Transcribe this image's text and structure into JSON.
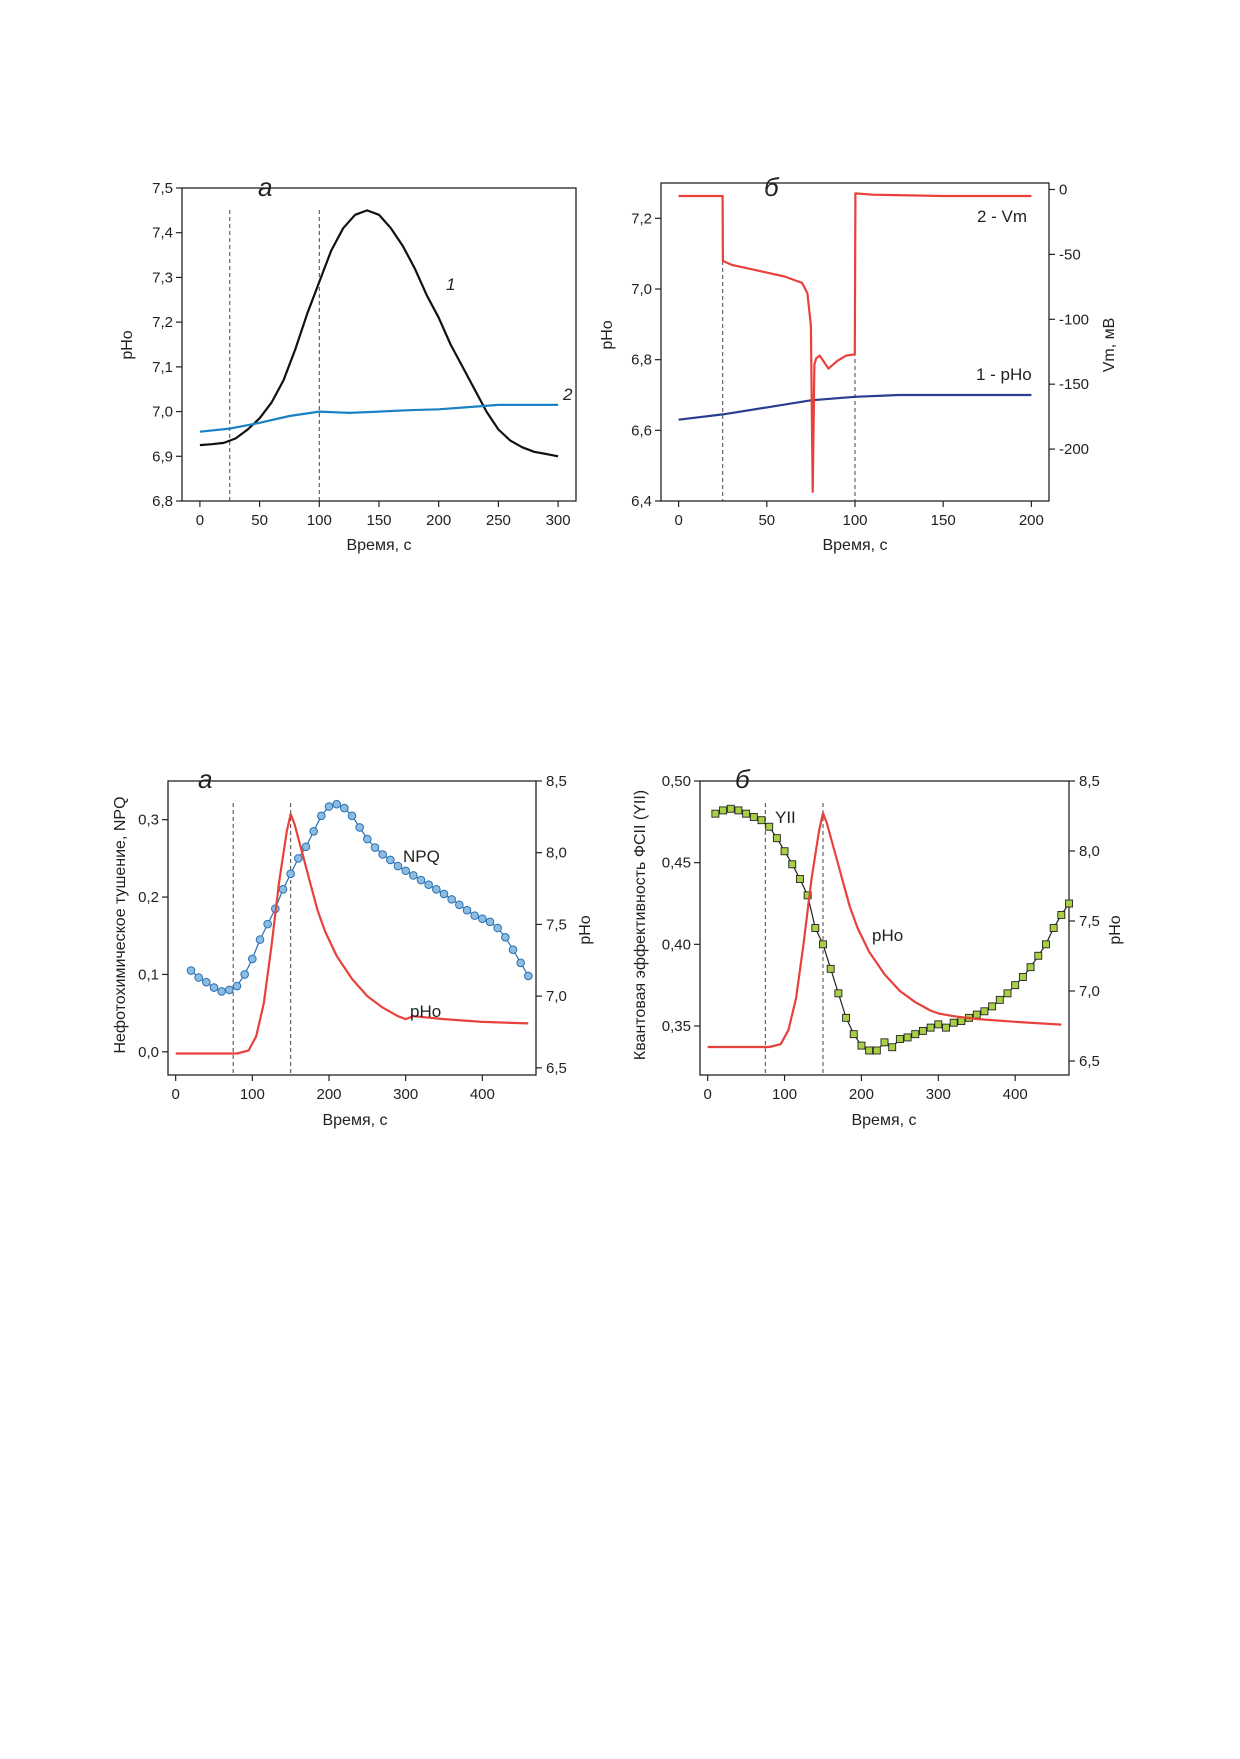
{
  "figure": {
    "top_row": [
      {
        "panel": "а",
        "xlabel": "Время, с",
        "ylabel": "pHo",
        "x_ticks": [
          "0",
          "50",
          "100",
          "150",
          "200",
          "250",
          "300"
        ],
        "y_ticks": [
          "6,8",
          "6,9",
          "7,0",
          "7,1",
          "7,2",
          "7,3",
          "7,4",
          "7,5"
        ],
        "series_labels": [
          "1",
          "2"
        ]
      },
      {
        "panel": "б",
        "xlabel": "Время, с",
        "ylabel_left": "pHo",
        "ylabel_right": "Vm, мВ",
        "x_ticks": [
          "0",
          "50",
          "100",
          "150",
          "200"
        ],
        "y_ticks_left": [
          "6,4",
          "6,6",
          "6,8",
          "7,0",
          "7,2"
        ],
        "y_ticks_right": [
          "0",
          "-50",
          "-100",
          "-150",
          "-200"
        ],
        "series_labels": [
          "2 - Vm",
          "1 - pHo"
        ]
      }
    ],
    "bottom_row": [
      {
        "panel": "а",
        "xlabel": "Время, с",
        "ylabel_left": "Нефотохимическое тушение, NPQ",
        "ylabel_right": "pHo",
        "x_ticks": [
          "0",
          "100",
          "200",
          "300",
          "400"
        ],
        "y_ticks_left": [
          "0,0",
          "0,1",
          "0,2",
          "0,3"
        ],
        "y_ticks_right": [
          "6,5",
          "7,0",
          "7,5",
          "8,0",
          "8,5"
        ],
        "series_labels": [
          "NPQ",
          "pHo"
        ]
      },
      {
        "panel": "б",
        "xlabel": "Время, с",
        "ylabel_left": "Квантовая эффективность ФСII (YII)",
        "ylabel_right": "pHo",
        "x_ticks": [
          "0",
          "100",
          "200",
          "300",
          "400"
        ],
        "y_ticks_left": [
          "0,35",
          "0,40",
          "0,45",
          "0,50"
        ],
        "y_ticks_right": [
          "6,5",
          "7,0",
          "7,5",
          "8,0",
          "8,5"
        ],
        "series_labels": [
          "YII",
          "pHo"
        ]
      }
    ]
  },
  "chart_data": [
    {
      "type": "line",
      "title": "",
      "xlabel": "Время, с",
      "ylabel": "pHo",
      "xlim": [
        -15,
        315
      ],
      "ylim": [
        6.8,
        7.5
      ],
      "vlines": [
        25,
        100
      ],
      "series": [
        {
          "name": "1",
          "color": "#111111",
          "x": [
            0,
            10,
            20,
            25,
            30,
            40,
            50,
            60,
            70,
            80,
            90,
            100,
            110,
            120,
            130,
            140,
            150,
            160,
            170,
            180,
            190,
            200,
            210,
            220,
            230,
            240,
            250,
            260,
            270,
            280,
            290,
            300
          ],
          "y": [
            6.925,
            6.927,
            6.93,
            6.935,
            6.94,
            6.96,
            6.985,
            7.02,
            7.07,
            7.14,
            7.22,
            7.29,
            7.36,
            7.41,
            7.44,
            7.45,
            7.44,
            7.41,
            7.37,
            7.32,
            7.26,
            7.21,
            7.15,
            7.1,
            7.05,
            7.0,
            6.96,
            6.935,
            6.92,
            6.91,
            6.905,
            6.9
          ]
        },
        {
          "name": "2",
          "color": "#1a82c4",
          "x": [
            0,
            25,
            50,
            75,
            100,
            125,
            150,
            175,
            200,
            225,
            250,
            275,
            300
          ],
          "y": [
            6.955,
            6.962,
            6.975,
            6.99,
            7.0,
            6.997,
            7.0,
            7.003,
            7.005,
            7.01,
            7.015,
            7.015,
            7.015
          ]
        }
      ]
    },
    {
      "type": "line",
      "title": "",
      "xlabel": "Время, с",
      "ylabel": "pHo",
      "ylabel_right": "Vm, мВ",
      "xlim": [
        -10,
        210
      ],
      "ylim": [
        6.4,
        7.3
      ],
      "ylim_right": [
        -240,
        5
      ],
      "vlines": [
        25,
        100
      ],
      "series": [
        {
          "name": "1 - pHo",
          "axis": "left",
          "color": "#2a3d8f",
          "x": [
            0,
            25,
            50,
            75,
            100,
            125,
            150,
            175,
            200
          ],
          "y": [
            6.63,
            6.645,
            6.665,
            6.685,
            6.695,
            6.7,
            6.7,
            6.7,
            6.7
          ]
        },
        {
          "name": "2 - Vm",
          "axis": "right",
          "color": "#e8413b",
          "x": [
            0,
            24.9,
            25.1,
            30,
            40,
            50,
            60,
            70,
            73,
            75,
            76,
            77,
            78,
            80,
            85,
            90,
            95,
            99.9,
            100.2,
            110,
            150,
            200
          ],
          "y": [
            -5,
            -5,
            -55,
            -58,
            -61,
            -64,
            -67,
            -72,
            -80,
            -105,
            -233,
            -135,
            -130,
            -128,
            -138,
            -132,
            -128,
            -127,
            -3,
            -4,
            -5,
            -5
          ]
        }
      ]
    },
    {
      "type": "line",
      "title": "",
      "xlabel": "Время, с",
      "ylabel": "Нефотохимическое тушение, NPQ",
      "ylabel_right": "pHo",
      "xlim": [
        -10,
        470
      ],
      "ylim": [
        -0.03,
        0.35
      ],
      "ylim_right": [
        6.45,
        8.5
      ],
      "vlines": [
        75,
        150
      ],
      "series": [
        {
          "name": "NPQ",
          "axis": "left",
          "color": "#2a6fb0",
          "marker": "circle",
          "marker_fill": "#8bbde3",
          "x": [
            20,
            30,
            40,
            50,
            60,
            70,
            80,
            90,
            100,
            110,
            120,
            130,
            140,
            150,
            160,
            170,
            180,
            190,
            200,
            210,
            220,
            230,
            240,
            250,
            260,
            270,
            280,
            290,
            300,
            310,
            320,
            330,
            340,
            350,
            360,
            370,
            380,
            390,
            400,
            410,
            420,
            430,
            440,
            450,
            460
          ],
          "y": [
            0.105,
            0.096,
            0.09,
            0.083,
            0.078,
            0.08,
            0.085,
            0.1,
            0.12,
            0.145,
            0.165,
            0.185,
            0.21,
            0.23,
            0.25,
            0.265,
            0.285,
            0.305,
            0.317,
            0.32,
            0.315,
            0.305,
            0.29,
            0.275,
            0.264,
            0.255,
            0.248,
            0.24,
            0.234,
            0.228,
            0.222,
            0.216,
            0.21,
            0.204,
            0.197,
            0.19,
            0.183,
            0.176,
            0.172,
            0.168,
            0.16,
            0.148,
            0.132,
            0.115,
            0.098
          ]
        },
        {
          "name": "pHo",
          "axis": "right",
          "color": "#e8413b",
          "x": [
            0,
            40,
            80,
            95,
            105,
            115,
            125,
            135,
            145,
            150,
            155,
            165,
            175,
            185,
            195,
            210,
            230,
            250,
            270,
            290,
            300,
            310,
            350,
            400,
            460
          ],
          "y": [
            6.6,
            6.6,
            6.6,
            6.62,
            6.72,
            6.95,
            7.35,
            7.8,
            8.15,
            8.27,
            8.2,
            8.0,
            7.8,
            7.6,
            7.45,
            7.28,
            7.12,
            7.0,
            6.92,
            6.86,
            6.84,
            6.86,
            6.84,
            6.82,
            6.81
          ]
        }
      ]
    },
    {
      "type": "line",
      "title": "",
      "xlabel": "Время, с",
      "ylabel": "Квантовая эффективность ФСII (YII)",
      "ylabel_right": "pHo",
      "xlim": [
        -10,
        470
      ],
      "ylim": [
        0.32,
        0.5
      ],
      "ylim_right": [
        6.4,
        8.5
      ],
      "vlines": [
        75,
        150
      ],
      "series": [
        {
          "name": "YII",
          "axis": "left",
          "color": "#222222",
          "marker": "square",
          "marker_fill": "#a8cf45",
          "x": [
            10,
            20,
            30,
            40,
            50,
            60,
            70,
            80,
            90,
            100,
            110,
            120,
            130,
            140,
            150,
            160,
            170,
            180,
            190,
            200,
            210,
            220,
            230,
            240,
            250,
            260,
            270,
            280,
            290,
            300,
            310,
            320,
            330,
            340,
            350,
            360,
            370,
            380,
            390,
            400,
            410,
            420,
            430,
            440,
            450,
            460,
            470
          ],
          "y": [
            0.48,
            0.482,
            0.483,
            0.482,
            0.48,
            0.478,
            0.476,
            0.472,
            0.465,
            0.457,
            0.449,
            0.44,
            0.43,
            0.41,
            0.4,
            0.385,
            0.37,
            0.355,
            0.345,
            0.338,
            0.335,
            0.335,
            0.34,
            0.337,
            0.342,
            0.343,
            0.345,
            0.347,
            0.349,
            0.351,
            0.349,
            0.352,
            0.353,
            0.355,
            0.357,
            0.359,
            0.362,
            0.366,
            0.37,
            0.375,
            0.38,
            0.386,
            0.393,
            0.4,
            0.41,
            0.418,
            0.425
          ]
        },
        {
          "name": "pHo",
          "axis": "right",
          "color": "#e8413b",
          "x": [
            0,
            40,
            80,
            95,
            105,
            115,
            125,
            135,
            145,
            150,
            155,
            165,
            175,
            185,
            195,
            210,
            230,
            250,
            270,
            290,
            300,
            320,
            350,
            400,
            460
          ],
          "y": [
            6.6,
            6.6,
            6.6,
            6.62,
            6.72,
            6.95,
            7.35,
            7.8,
            8.15,
            8.27,
            8.2,
            8.0,
            7.8,
            7.6,
            7.45,
            7.28,
            7.12,
            7.0,
            6.92,
            6.86,
            6.84,
            6.82,
            6.8,
            6.78,
            6.76
          ]
        }
      ]
    }
  ]
}
